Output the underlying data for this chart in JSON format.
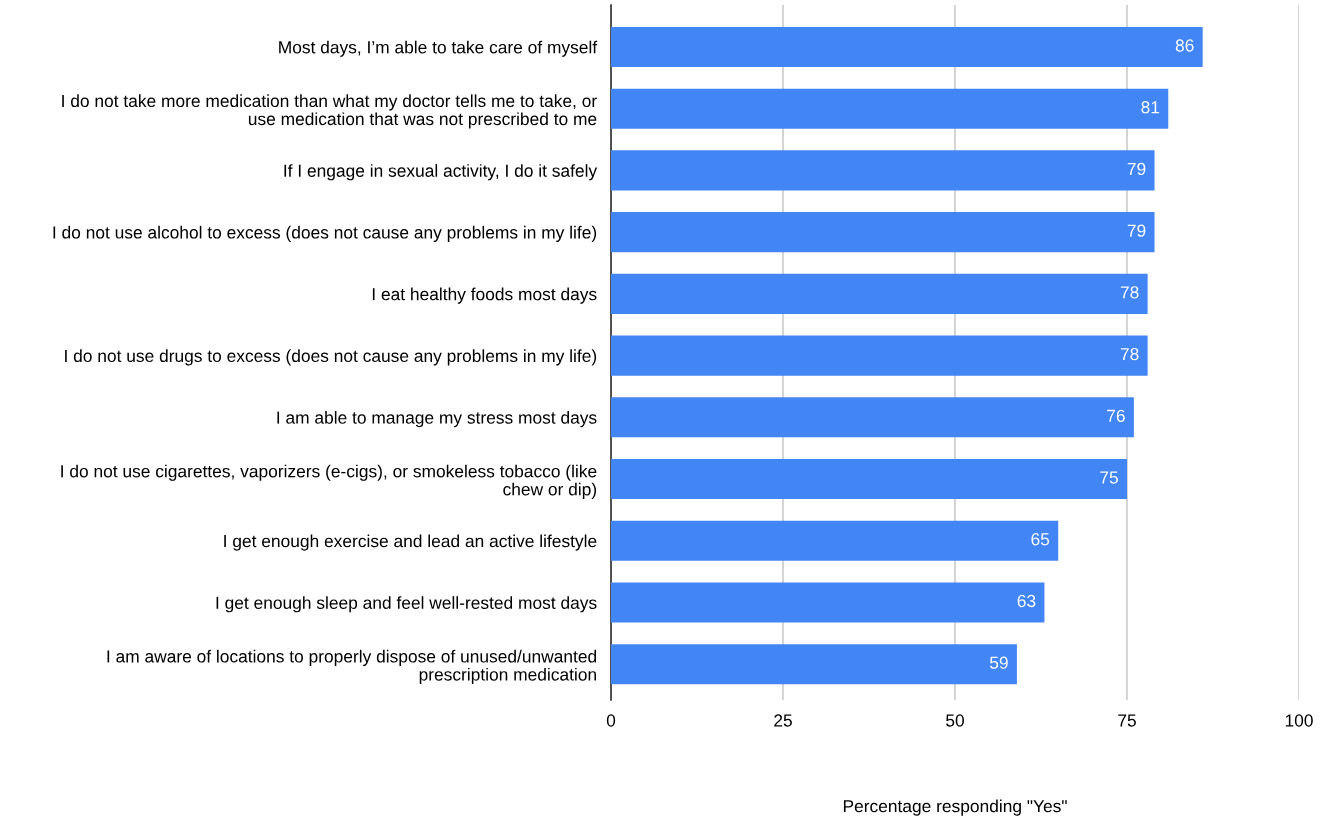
{
  "chart_data": {
    "type": "bar",
    "orientation": "horizontal",
    "categories": [
      "Most days, I’m able to take care of myself",
      "I do not take more medication than what my doctor tells me to take, or\nuse medication that was not prescribed to me",
      "If I engage in sexual activity, I do it safely",
      "I do not use alcohol to excess (does not cause any problems in my life)",
      "I eat healthy foods most days",
      "I do not use drugs to excess (does not cause any problems in my life)",
      "I am able to manage my stress most days",
      "I do not use cigarettes, vaporizers (e-cigs), or smokeless tobacco (like\nchew or dip)",
      "I get enough exercise and lead an active lifestyle",
      "I get enough sleep and feel well-rested most days",
      "I am aware of locations to properly dispose of unused/unwanted\nprescription medication"
    ],
    "values": [
      86,
      81,
      79,
      79,
      78,
      78,
      76,
      75,
      65,
      63,
      59
    ],
    "color": "#4285f4",
    "xlabel": "Percentage responding \"Yes\"",
    "xlim": [
      0,
      100
    ],
    "xticks": [
      0,
      25,
      50,
      75,
      100
    ],
    "grid": "x",
    "data_labels": true
  }
}
